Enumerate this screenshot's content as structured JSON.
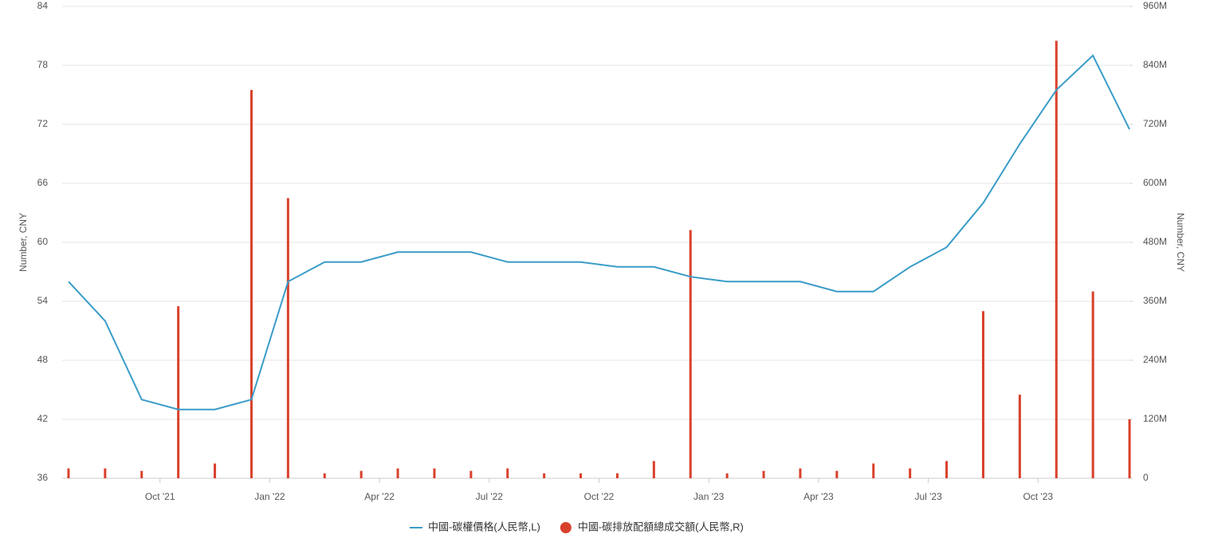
{
  "chart_data": {
    "type": "combo",
    "x": [
      "2021-07",
      "2021-08",
      "2021-09",
      "2021-10",
      "2021-11",
      "2021-12",
      "2022-01",
      "2022-02",
      "2022-03",
      "2022-04",
      "2022-05",
      "2022-06",
      "2022-07",
      "2022-08",
      "2022-09",
      "2022-10",
      "2022-11",
      "2022-12",
      "2023-01",
      "2023-02",
      "2023-03",
      "2023-04",
      "2023-05",
      "2023-06",
      "2023-07",
      "2023-08",
      "2023-09",
      "2023-10",
      "2023-11",
      "2023-12"
    ],
    "xlim": [
      "2021-07",
      "2023-12"
    ],
    "xticks": [
      {
        "value": "2021-10",
        "label": "Oct '21"
      },
      {
        "value": "2022-01",
        "label": "Jan '22"
      },
      {
        "value": "2022-04",
        "label": "Apr '22"
      },
      {
        "value": "2022-07",
        "label": "Jul '22"
      },
      {
        "value": "2022-10",
        "label": "Oct '22"
      },
      {
        "value": "2023-01",
        "label": "Jan '23"
      },
      {
        "value": "2023-04",
        "label": "Apr '23"
      },
      {
        "value": "2023-07",
        "label": "Jul '23"
      },
      {
        "value": "2023-10",
        "label": "Oct '23"
      }
    ],
    "ylabel": "Number, CNY",
    "y2label": "Number, CNY",
    "ylim": [
      36,
      84
    ],
    "yticks": [
      36,
      42,
      48,
      54,
      60,
      66,
      72,
      78,
      84
    ],
    "y2lim": [
      0,
      960000000
    ],
    "y2ticks": [
      0,
      {
        "value": 120000000,
        "label": "120M"
      },
      {
        "value": 240000000,
        "label": "240M"
      },
      {
        "value": 360000000,
        "label": "360M"
      },
      {
        "value": 480000000,
        "label": "480M"
      },
      {
        "value": 600000000,
        "label": "600M"
      },
      {
        "value": 720000000,
        "label": "720M"
      },
      {
        "value": 840000000,
        "label": "840M"
      },
      {
        "value": 960000000,
        "label": "960M"
      }
    ],
    "grid": true,
    "legend": "bottom",
    "series": [
      {
        "name": "中國-碳權價格(人民幣,L)",
        "type": "line",
        "color": "#3a9cc8",
        "values": [
          56,
          52,
          44,
          43,
          43,
          44,
          56,
          58,
          58,
          59,
          59,
          59,
          58,
          58,
          58,
          57.5,
          57.5,
          56.5,
          56,
          56,
          56,
          55,
          55,
          57.5,
          59.5,
          64,
          70,
          75.5,
          79,
          71.5
        ]
      },
      {
        "name": "中國-碳排放配額總成交額(人民幣,R)",
        "type": "bar",
        "color": "#d9402b",
        "axis": "y2",
        "values": [
          20000000,
          20000000,
          15000000,
          350000000,
          30000000,
          790000000,
          570000000,
          10000000,
          15000000,
          20000000,
          20000000,
          15000000,
          20000000,
          10000000,
          10000000,
          10000000,
          35000000,
          505000000,
          10000000,
          15000000,
          20000000,
          15000000,
          30000000,
          20000000,
          35000000,
          340000000,
          170000000,
          890000000,
          380000000,
          120000000
        ]
      }
    ]
  }
}
